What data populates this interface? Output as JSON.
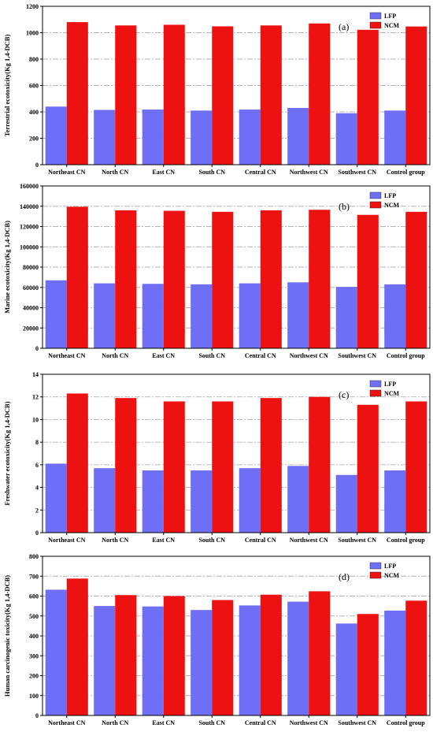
{
  "chart_data": [
    {
      "type": "bar",
      "panel_label": "(a)",
      "ylabel": "Terrestrial ecotoxicity(Kg 1,4-DCB)",
      "categories": [
        "Northeast CN",
        "North CN",
        "East CN",
        "South CN",
        "Central CN",
        "Northwest CN",
        "Southwest CN",
        "Control group"
      ],
      "ylim": [
        0,
        1200
      ],
      "yticks": [
        0,
        200,
        400,
        600,
        800,
        1000,
        1200
      ],
      "grid": "horizontal dash-dot",
      "legend_position": "top-right",
      "series": [
        {
          "name": "LFP",
          "color": "#6f6ff5",
          "values": [
            440,
            415,
            418,
            410,
            418,
            430,
            390,
            410
          ]
        },
        {
          "name": "NCM",
          "color": "#ee1111",
          "values": [
            1080,
            1055,
            1060,
            1048,
            1055,
            1070,
            1022,
            1047
          ]
        }
      ]
    },
    {
      "type": "bar",
      "panel_label": "(b)",
      "ylabel": "Marine ecotoxicity(Kg 1,4-DCB)",
      "categories": [
        "Northeast CN",
        "North CN",
        "East CN",
        "South CN",
        "Central CN",
        "Northwest CN",
        "Southwest CN",
        "Control group"
      ],
      "ylim": [
        0,
        160000
      ],
      "yticks": [
        0,
        20000,
        40000,
        60000,
        80000,
        100000,
        120000,
        140000,
        160000
      ],
      "grid": "horizontal dash-dot",
      "legend_position": "top-right",
      "series": [
        {
          "name": "LFP",
          "color": "#6f6ff5",
          "values": [
            67000,
            64000,
            63500,
            63000,
            64000,
            65000,
            60500,
            63000
          ]
        },
        {
          "name": "NCM",
          "color": "#ee1111",
          "values": [
            139500,
            136000,
            135500,
            134500,
            136000,
            136500,
            131500,
            134500
          ]
        }
      ]
    },
    {
      "type": "bar",
      "panel_label": "(c)",
      "ylabel": "Freshwater ecotoxicity(Kg 1,4-DCB)",
      "categories": [
        "Northeast CN",
        "North CN",
        "East CN",
        "South CN",
        "Central CN",
        "Northwest CN",
        "Southwest CN",
        "Control group"
      ],
      "ylim": [
        0,
        14
      ],
      "yticks": [
        0,
        2,
        4,
        6,
        8,
        10,
        12,
        14
      ],
      "grid": "horizontal dash-dot",
      "legend_position": "top-right",
      "series": [
        {
          "name": "LFP",
          "color": "#6f6ff5",
          "values": [
            6.1,
            5.7,
            5.5,
            5.5,
            5.7,
            5.9,
            5.1,
            5.5
          ]
        },
        {
          "name": "NCM",
          "color": "#ee1111",
          "values": [
            12.3,
            11.9,
            11.6,
            11.6,
            11.9,
            12.0,
            11.3,
            11.6
          ]
        }
      ]
    },
    {
      "type": "bar",
      "panel_label": "(d)",
      "ylabel": "Human carcinogenic toxicity(Kg 1,4-DCB)",
      "categories": [
        "Northeast CN",
        "North CN",
        "East CN",
        "South CN",
        "Central CN",
        "Northwest CN",
        "Southwest CN",
        "Control group"
      ],
      "ylim": [
        0,
        800
      ],
      "yticks": [
        0,
        100,
        200,
        300,
        400,
        500,
        600,
        700,
        800
      ],
      "grid": "horizontal dash-dot",
      "legend_position": "top-right",
      "series": [
        {
          "name": "LFP",
          "color": "#6f6ff5",
          "values": [
            632,
            550,
            548,
            530,
            553,
            572,
            462,
            527
          ]
        },
        {
          "name": "NCM",
          "color": "#ee1111",
          "values": [
            688,
            605,
            600,
            580,
            607,
            624,
            510,
            577
          ]
        }
      ]
    }
  ]
}
